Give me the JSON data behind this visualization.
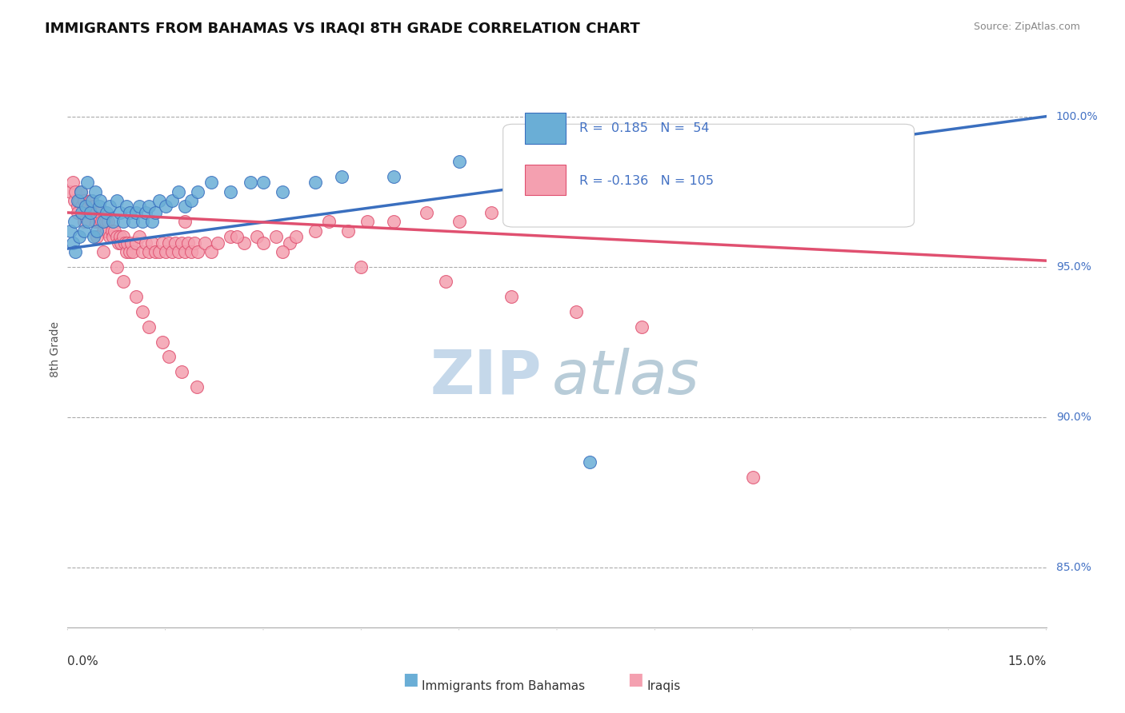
{
  "title": "IMMIGRANTS FROM BAHAMAS VS IRAQI 8TH GRADE CORRELATION CHART",
  "source": "Source: ZipAtlas.com",
  "ylabel": "8th Grade",
  "xmin": 0.0,
  "xmax": 15.0,
  "ymin": 83.0,
  "ymax": 101.5,
  "ytick_labels": [
    "85.0%",
    "90.0%",
    "95.0%",
    "100.0%"
  ],
  "ytick_values": [
    85.0,
    90.0,
    95.0,
    100.0
  ],
  "blue_R": 0.185,
  "blue_N": 54,
  "pink_R": -0.136,
  "pink_N": 105,
  "blue_color": "#6aaed6",
  "pink_color": "#f4a0b0",
  "blue_edge_color": "#3a6fbf",
  "pink_edge_color": "#e05070",
  "blue_trend_color": "#3a6fbf",
  "pink_trend_color": "#e05070",
  "dashed_line_color": "#aaaaaa",
  "watermark_color": "#c8d8e8",
  "legend_label_blue": "Immigrants from Bahamas",
  "legend_label_pink": "Iraqis",
  "blue_trend_x0": 0.0,
  "blue_trend_y0": 95.6,
  "blue_trend_x1": 15.0,
  "blue_trend_y1": 100.0,
  "pink_trend_x0": 0.0,
  "pink_trend_y0": 96.8,
  "pink_trend_x1": 15.0,
  "pink_trend_y1": 95.2,
  "blue_scatter_x": [
    0.05,
    0.08,
    0.1,
    0.12,
    0.15,
    0.18,
    0.2,
    0.22,
    0.25,
    0.28,
    0.3,
    0.32,
    0.35,
    0.38,
    0.4,
    0.42,
    0.45,
    0.48,
    0.5,
    0.55,
    0.6,
    0.65,
    0.7,
    0.75,
    0.8,
    0.85,
    0.9,
    0.95,
    1.0,
    1.05,
    1.1,
    1.15,
    1.2,
    1.25,
    1.3,
    1.35,
    1.4,
    1.5,
    1.6,
    1.7,
    1.8,
    1.9,
    2.0,
    2.2,
    2.5,
    2.8,
    3.0,
    3.3,
    3.8,
    4.2,
    5.0,
    6.0,
    7.0,
    8.0
  ],
  "blue_scatter_y": [
    96.2,
    95.8,
    96.5,
    95.5,
    97.2,
    96.0,
    97.5,
    96.8,
    96.2,
    97.0,
    97.8,
    96.5,
    96.8,
    97.2,
    96.0,
    97.5,
    96.2,
    97.0,
    97.2,
    96.5,
    96.8,
    97.0,
    96.5,
    97.2,
    96.8,
    96.5,
    97.0,
    96.8,
    96.5,
    96.8,
    97.0,
    96.5,
    96.8,
    97.0,
    96.5,
    96.8,
    97.2,
    97.0,
    97.2,
    97.5,
    97.0,
    97.2,
    97.5,
    97.8,
    97.5,
    97.8,
    97.8,
    97.5,
    97.8,
    98.0,
    98.0,
    98.5,
    98.5,
    88.5
  ],
  "pink_scatter_x": [
    0.05,
    0.08,
    0.1,
    0.12,
    0.15,
    0.18,
    0.2,
    0.22,
    0.25,
    0.28,
    0.3,
    0.32,
    0.35,
    0.38,
    0.4,
    0.42,
    0.45,
    0.48,
    0.5,
    0.52,
    0.55,
    0.58,
    0.6,
    0.62,
    0.65,
    0.68,
    0.7,
    0.72,
    0.75,
    0.78,
    0.8,
    0.82,
    0.85,
    0.88,
    0.9,
    0.92,
    0.95,
    0.98,
    1.0,
    1.05,
    1.1,
    1.15,
    1.2,
    1.25,
    1.3,
    1.35,
    1.4,
    1.45,
    1.5,
    1.55,
    1.6,
    1.65,
    1.7,
    1.75,
    1.8,
    1.85,
    1.9,
    1.95,
    2.0,
    2.1,
    2.2,
    2.3,
    2.5,
    2.7,
    2.9,
    3.0,
    3.2,
    3.4,
    3.5,
    3.8,
    4.0,
    4.3,
    4.6,
    5.0,
    5.5,
    6.0,
    6.5,
    7.0,
    7.5,
    8.0,
    8.5,
    9.0,
    9.5,
    10.5,
    1.8,
    2.6,
    3.3,
    4.5,
    5.8,
    6.8,
    7.8,
    8.8,
    0.15,
    0.25,
    0.45,
    0.55,
    0.75,
    0.85,
    1.05,
    1.15,
    1.25,
    1.45,
    1.55,
    1.75,
    1.98
  ],
  "pink_scatter_y": [
    97.5,
    97.8,
    97.2,
    97.5,
    97.0,
    97.2,
    97.5,
    97.0,
    97.2,
    97.0,
    96.8,
    97.0,
    97.2,
    96.8,
    97.0,
    96.5,
    96.8,
    96.5,
    96.8,
    96.5,
    96.2,
    96.5,
    96.2,
    96.5,
    96.0,
    96.2,
    96.0,
    96.2,
    96.0,
    95.8,
    96.0,
    95.8,
    96.0,
    95.8,
    95.5,
    95.8,
    95.5,
    95.8,
    95.5,
    95.8,
    96.0,
    95.5,
    95.8,
    95.5,
    95.8,
    95.5,
    95.5,
    95.8,
    95.5,
    95.8,
    95.5,
    95.8,
    95.5,
    95.8,
    95.5,
    95.8,
    95.5,
    95.8,
    95.5,
    95.8,
    95.5,
    95.8,
    96.0,
    95.8,
    96.0,
    95.8,
    96.0,
    95.8,
    96.0,
    96.2,
    96.5,
    96.2,
    96.5,
    96.5,
    96.8,
    96.5,
    96.8,
    97.0,
    96.8,
    97.2,
    97.0,
    97.5,
    97.2,
    88.0,
    96.5,
    96.0,
    95.5,
    95.0,
    94.5,
    94.0,
    93.5,
    93.0,
    96.8,
    96.5,
    96.0,
    95.5,
    95.0,
    94.5,
    94.0,
    93.5,
    93.0,
    92.5,
    92.0,
    91.5,
    91.0
  ]
}
